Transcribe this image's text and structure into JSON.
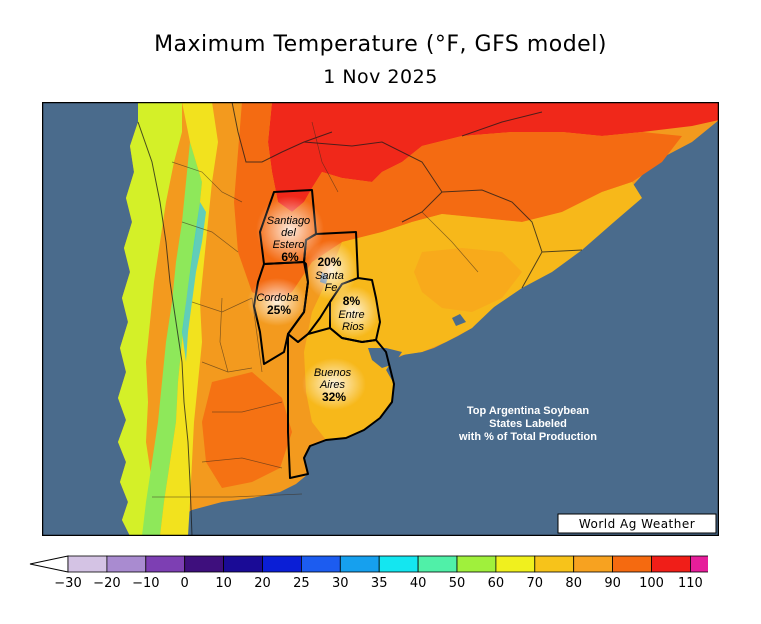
{
  "header": {
    "title": "Maximum Temperature (°F, GFS model)",
    "date": "1 Nov 2025"
  },
  "map": {
    "ocean_color": "#4a6b8c",
    "border_color": "#000000",
    "provinces": [
      {
        "name_lines": [
          "Santiago",
          "del",
          "Estero"
        ],
        "percent": "6%"
      },
      {
        "name_lines": [
          "Santa",
          "Fe"
        ],
        "percent": "20%"
      },
      {
        "name_lines": [
          "Cordoba"
        ],
        "percent": "25%"
      },
      {
        "name_lines": [
          "Entre",
          "Rios"
        ],
        "percent": "8%"
      },
      {
        "name_lines": [
          "Buenos",
          "Aires"
        ],
        "percent": "32%"
      }
    ],
    "note_lines": [
      "Top Argentina Soybean",
      "States Labeled",
      "with % of Total Production"
    ],
    "credit": "World Ag Weather"
  },
  "legend": {
    "ticks": [
      "-30",
      "-20",
      "-10",
      "0",
      "10",
      "20",
      "25",
      "30",
      "35",
      "40",
      "50",
      "60",
      "70",
      "80",
      "90",
      "100",
      "110"
    ],
    "colors": [
      "#d4c3e4",
      "#a98bd0",
      "#7d3fb3",
      "#3e0f7d",
      "#1a0b96",
      "#0a1ed6",
      "#1c5cf0",
      "#16a0ee",
      "#14e6f0",
      "#50f0a8",
      "#a0f03c",
      "#f0f01e",
      "#f7c31a",
      "#f7a220",
      "#f56a10",
      "#f01e18",
      "#e61e9a"
    ],
    "left_end_color": "#ffffff",
    "right_end_color": "#f05ad2"
  }
}
